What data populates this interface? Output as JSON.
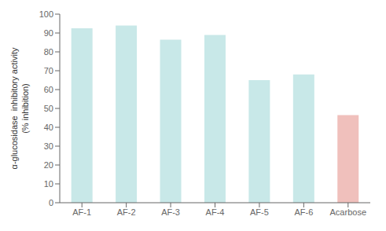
{
  "chart_data": {
    "type": "bar",
    "ylabel": "α-glucosidase  inhibitory activity\n(% inhibition)",
    "categories": [
      "AF-1",
      "AF-2",
      "AF-3",
      "AF-4",
      "AF-5",
      "AF-6",
      "Acarbose"
    ],
    "values": [
      92.5,
      94.0,
      86.5,
      89.0,
      65.0,
      68.0,
      46.5
    ],
    "colors": [
      "#c8e8e8",
      "#c8e8e8",
      "#c8e8e8",
      "#c8e8e8",
      "#c8e8e8",
      "#c8e8e8",
      "#f0c0bc"
    ],
    "ylim": [
      0,
      100
    ],
    "yticks": [
      0,
      10,
      20,
      30,
      40,
      50,
      60,
      70,
      80,
      90,
      100
    ],
    "grid": false
  }
}
